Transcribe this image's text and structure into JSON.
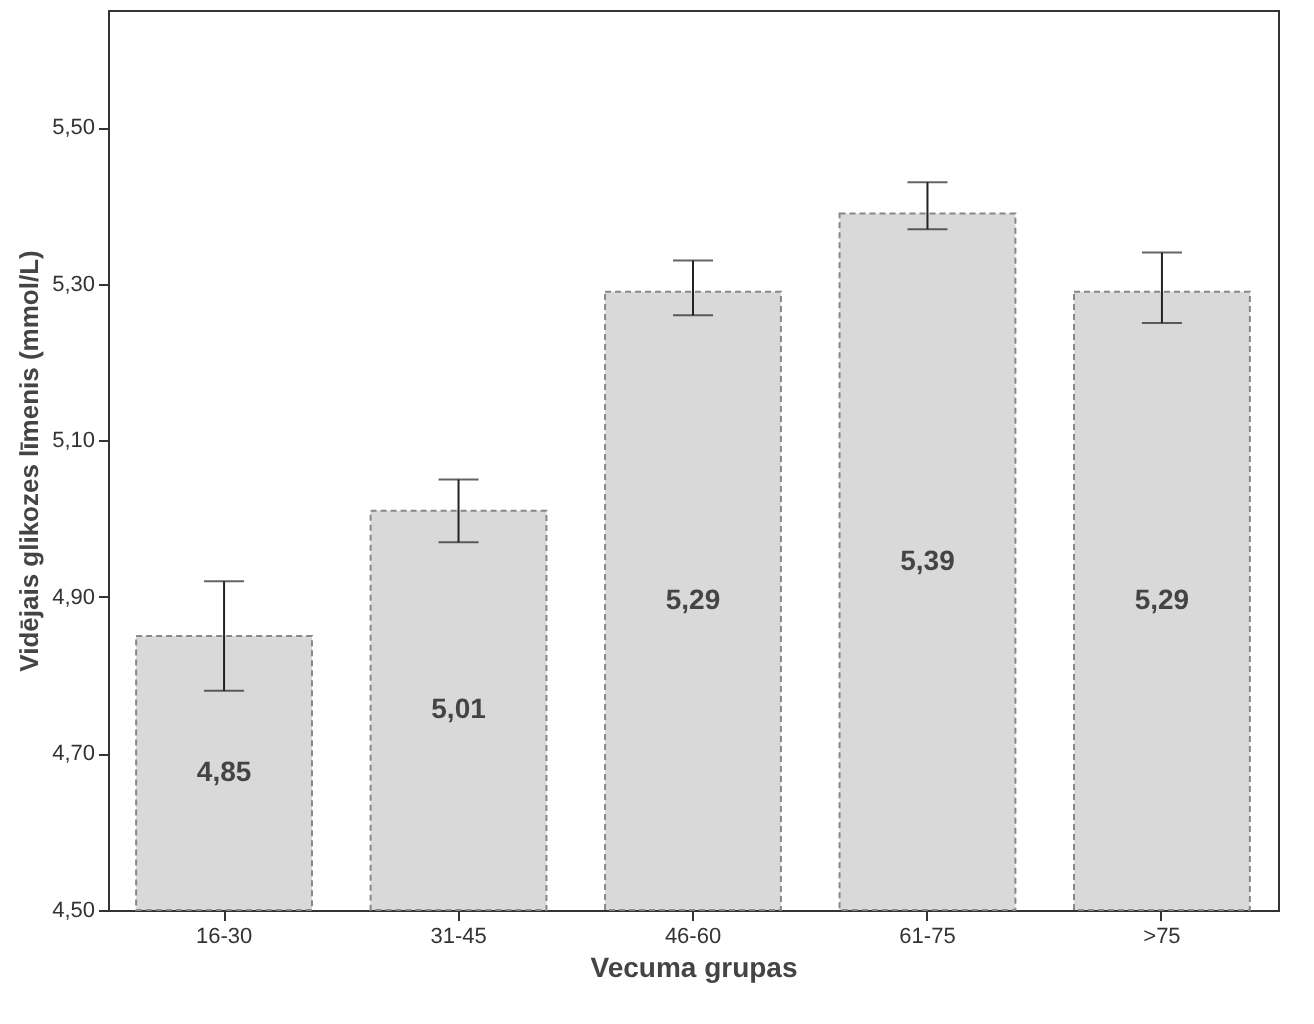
{
  "chart_data": {
    "type": "bar",
    "xlabel": "Vecuma grupas",
    "ylabel": "Vidējais glikozes līmenis (mmol/L)",
    "categories": [
      "16-30",
      "31-45",
      "46-60",
      "61-75",
      ">75"
    ],
    "values": [
      4.85,
      5.01,
      5.29,
      5.39,
      5.29
    ],
    "value_labels": [
      "4,85",
      "5,01",
      "5,29",
      "5,39",
      "5,29"
    ],
    "errors": [
      [
        4.78,
        4.92
      ],
      [
        4.97,
        5.05
      ],
      [
        5.26,
        5.33
      ],
      [
        5.37,
        5.43
      ],
      [
        5.25,
        5.34
      ]
    ],
    "color": "#d9d9d9",
    "ylim": [
      4.5,
      5.65
    ],
    "yticks": [
      {
        "value": 4.5,
        "label": "4,50"
      },
      {
        "value": 4.7,
        "label": "4,70"
      },
      {
        "value": 4.9,
        "label": "4,90"
      },
      {
        "value": 5.1,
        "label": "5,10"
      },
      {
        "value": 5.3,
        "label": "5,30"
      },
      {
        "value": 5.5,
        "label": "5,50"
      }
    ],
    "grid": false
  }
}
